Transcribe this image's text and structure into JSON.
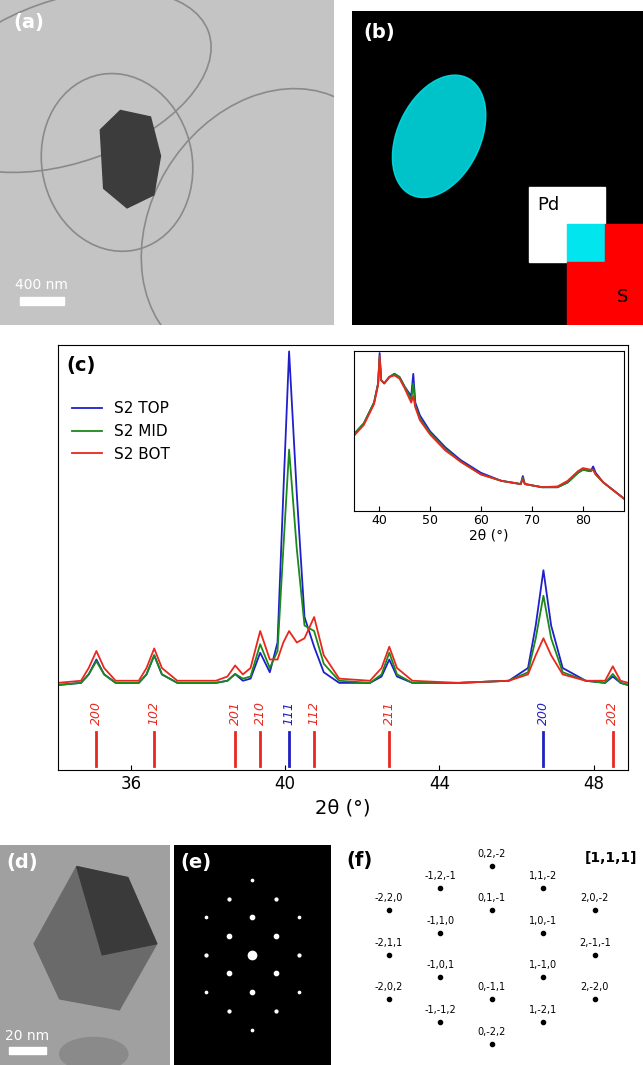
{
  "image_a": {
    "label": "(a)",
    "scale_bar": "400 nm"
  },
  "image_b": {
    "label": "(b)",
    "elements": [
      {
        "name": "Pd",
        "color": "#00e5ee"
      },
      {
        "name": "S",
        "color": "#ff0000"
      }
    ]
  },
  "chart_data": [
    {
      "type": "line",
      "title": "(c)",
      "xlabel": "2θ (°)",
      "x": [
        34.1,
        34.7,
        34.9,
        35.1,
        35.3,
        35.6,
        36.2,
        36.4,
        36.6,
        36.8,
        37.2,
        38.2,
        38.5,
        38.7,
        38.9,
        39.1,
        39.35,
        39.6,
        39.8,
        39.95,
        40.1,
        40.3,
        40.5,
        40.75,
        41.0,
        41.4,
        42.2,
        42.5,
        42.7,
        42.9,
        43.3,
        44.5,
        45.8,
        46.3,
        46.5,
        46.7,
        46.9,
        47.2,
        47.8,
        48.3,
        48.5,
        48.7,
        48.9
      ],
      "series": [
        {
          "name": "S2 TOP",
          "color": "#1f1fcc",
          "values": [
            20,
            20.5,
            22.5,
            26,
            22.5,
            20.5,
            20.5,
            22.5,
            27,
            22.5,
            20.5,
            20.5,
            21,
            22.6,
            21,
            21.5,
            27.6,
            23,
            30,
            65,
            98.5,
            65,
            36,
            29,
            23,
            20.5,
            20.5,
            22,
            26,
            22,
            20.5,
            20.5,
            21,
            24,
            34,
            47,
            34,
            24,
            21,
            20.5,
            22,
            20.5,
            20
          ]
        },
        {
          "name": "S2 MID",
          "color": "#1a8a1a",
          "values": [
            20,
            20.5,
            22.5,
            25.6,
            22.5,
            20.5,
            20.5,
            22.5,
            27,
            22.5,
            20.5,
            20.5,
            21,
            22.6,
            21.5,
            22,
            29.6,
            24,
            28,
            52,
            75.4,
            52,
            34,
            32.7,
            25,
            21,
            20.5,
            22.5,
            27.6,
            22.5,
            20.5,
            20.5,
            21,
            23,
            31,
            41,
            31,
            23,
            21,
            20.5,
            22.6,
            20.5,
            20
          ]
        },
        {
          "name": "S2 BOT",
          "color": "#e8281e",
          "values": [
            20.5,
            21,
            24,
            28,
            24,
            21,
            21,
            24,
            28.6,
            24,
            21,
            21,
            22,
            24.6,
            22.5,
            24,
            32.7,
            26,
            26,
            30,
            32.7,
            30,
            31,
            36,
            27,
            21.5,
            21,
            24,
            29,
            24,
            21,
            20.5,
            21,
            22.5,
            27,
            31,
            27,
            22.5,
            21,
            21,
            24.4,
            21,
            20.5
          ]
        }
      ],
      "xlim": [
        34.1,
        48.9
      ],
      "xticks": [
        36,
        40,
        44,
        48
      ],
      "ylim": [
        0,
        100
      ],
      "tick_labels": "x",
      "legend": "upper left",
      "references": [
        {
          "color": "#e8281e",
          "x": [
            35.1,
            36.6,
            38.7,
            39.35,
            40.75,
            42.7,
            48.5
          ],
          "labels": [
            "200",
            "102",
            "201",
            "210",
            "112",
            "211",
            "202"
          ]
        },
        {
          "color": "#2020c0",
          "x": [
            40.1,
            46.7
          ],
          "labels": [
            "111",
            "200"
          ]
        }
      ]
    },
    {
      "type": "line",
      "xlabel": "2θ (°)",
      "x": [
        35,
        37,
        39,
        39.8,
        40.1,
        40.4,
        41,
        42,
        43,
        44,
        45,
        46.3,
        46.7,
        47.1,
        48,
        50,
        53,
        56,
        60,
        64,
        67.8,
        68.2,
        68.6,
        72,
        75,
        77,
        79,
        80,
        81.5,
        82,
        82.5,
        84,
        86,
        88
      ],
      "series": [
        {
          "color": "#1f1fcc",
          "values": [
            48,
            55,
            68,
            80,
            99,
            82,
            80,
            84,
            86,
            84,
            78,
            72,
            86,
            68,
            60,
            50,
            40,
            32,
            24,
            19,
            17,
            22,
            17,
            15,
            15,
            18,
            24,
            26,
            25,
            28,
            24,
            18,
            13,
            8
          ]
        },
        {
          "color": "#1a8a1a",
          "values": [
            48,
            55,
            68,
            80,
            96,
            82,
            80,
            84,
            86,
            84,
            78,
            70,
            80,
            66,
            58,
            49,
            39,
            31,
            23,
            19,
            17,
            21,
            17,
            15,
            15,
            18,
            24,
            26,
            25,
            26,
            23,
            18,
            13,
            8
          ]
        },
        {
          "color": "#e8281e",
          "values": [
            47,
            54,
            67,
            79,
            97,
            82,
            80,
            84,
            85,
            83,
            77,
            68,
            72,
            65,
            57,
            48,
            38,
            31,
            23,
            19,
            17,
            20,
            17,
            15,
            15.5,
            19,
            25,
            27,
            26,
            26,
            23,
            18,
            13,
            8
          ]
        }
      ],
      "xlim": [
        35,
        88
      ],
      "xticks": [
        40,
        50,
        60,
        70,
        80
      ],
      "ylim": [
        0,
        100
      ],
      "tick_labels": "x"
    }
  ],
  "image_d": {
    "label": "(d)",
    "scale_bar": "20 nm"
  },
  "image_e": {
    "label": "(e)"
  },
  "pattern_f": {
    "label": "(f)",
    "zone_axis": "[1,1,1]",
    "spots": [
      "0,2,-2",
      "1,-2,1",
      "2,-2,0",
      "-1,-1,2",
      "0,-1,1",
      "1,-1,0",
      "2,-1,-1",
      "-2,0,2",
      "-1,0,1",
      "1,0,-1",
      "2,0,-2",
      "-2,1,1",
      "-1,1,0",
      "0,1,-1",
      "1,1,-2",
      "-2,2,0",
      "-1,2,-1",
      "0,-2,2"
    ]
  }
}
